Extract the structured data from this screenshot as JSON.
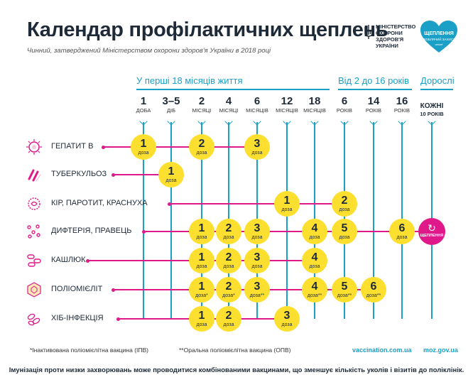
{
  "header": {
    "title": "Календар профілактичних щеплень",
    "subtitle": "Чинний, затверджений Міністерством охорони здоров'я України в 2018 році",
    "ministry_lines": [
      "МІНІСТЕРСТВО",
      "ОХОРОНИ",
      "ЗДОРОВ'Я",
      "УКРАЇНИ"
    ],
    "logo_title": "ЩЕПЛЕННЯ",
    "logo_subtitle": "ЛЮБЛЯЧИЙ ЗАХИСТ",
    "logo_brand": "unicef"
  },
  "groups": [
    {
      "label": "У перші 18 місяців життя"
    },
    {
      "label": "Від 2 до 16 років"
    },
    {
      "label": "Дорослі"
    }
  ],
  "columns": [
    {
      "num": "1",
      "unit": "ДОБА"
    },
    {
      "num": "3–5",
      "unit": "ДІБ"
    },
    {
      "num": "2",
      "unit": "МІСЯЦІ"
    },
    {
      "num": "4",
      "unit": "МІСЯЦІ"
    },
    {
      "num": "6",
      "unit": "МІСЯЦІВ"
    },
    {
      "num": "12",
      "unit": "МІСЯЦІВ"
    },
    {
      "num": "18",
      "unit": "МІСЯЦІВ"
    },
    {
      "num": "6",
      "unit": "РОКІВ"
    },
    {
      "num": "14",
      "unit": "РОКІВ"
    },
    {
      "num": "16",
      "unit": "РОКІВ"
    },
    {
      "num": "КОЖНІ",
      "unit": "10 РОКІВ"
    }
  ],
  "dose_word": "доза",
  "rows": [
    {
      "label": "ГЕПАТИТ В",
      "icon": "hepatitis-virus-icon",
      "doses": [
        {
          "col": 0,
          "n": "1",
          "note": ""
        },
        {
          "col": 2,
          "n": "2",
          "note": ""
        },
        {
          "col": 4,
          "n": "3",
          "note": ""
        }
      ]
    },
    {
      "label": "ТУБЕРКУЛЬОЗ",
      "icon": "tuberculosis-bacteria-icon",
      "doses": [
        {
          "col": 1,
          "n": "1",
          "note": ""
        }
      ]
    },
    {
      "label": "КІР, ПАРОТИТ, КРАСНУХА",
      "icon": "measles-virus-icon",
      "doses": [
        {
          "col": 5,
          "n": "1",
          "note": ""
        },
        {
          "col": 7,
          "n": "2",
          "note": ""
        }
      ]
    },
    {
      "label": "ДИФТЕРІЯ, ПРАВЕЦЬ",
      "icon": "diphtheria-bacteria-icon",
      "doses": [
        {
          "col": 2,
          "n": "1",
          "note": ""
        },
        {
          "col": 3,
          "n": "2",
          "note": ""
        },
        {
          "col": 4,
          "n": "3",
          "note": ""
        },
        {
          "col": 6,
          "n": "4",
          "note": ""
        },
        {
          "col": 7,
          "n": "5",
          "note": ""
        },
        {
          "col": 9,
          "n": "6",
          "note": ""
        }
      ]
    },
    {
      "label": "КАШЛЮК",
      "icon": "pertussis-bacteria-icon",
      "doses": [
        {
          "col": 2,
          "n": "1",
          "note": ""
        },
        {
          "col": 3,
          "n": "2",
          "note": ""
        },
        {
          "col": 4,
          "n": "3",
          "note": ""
        },
        {
          "col": 6,
          "n": "4",
          "note": ""
        }
      ]
    },
    {
      "label": "ПОЛІОМІЄЛІТ",
      "icon": "polio-virus-icon",
      "doses": [
        {
          "col": 2,
          "n": "1",
          "note": "*"
        },
        {
          "col": 3,
          "n": "2",
          "note": "*"
        },
        {
          "col": 4,
          "n": "3",
          "note": "**"
        },
        {
          "col": 6,
          "n": "4",
          "note": "**"
        },
        {
          "col": 7,
          "n": "5",
          "note": "**"
        },
        {
          "col": 8,
          "n": "6",
          "note": "**"
        }
      ]
    },
    {
      "label": "ХІБ-ІНФЕКЦІЯ",
      "icon": "hib-bacteria-icon",
      "doses": [
        {
          "col": 2,
          "n": "1",
          "note": ""
        },
        {
          "col": 3,
          "n": "2",
          "note": ""
        },
        {
          "col": 5,
          "n": "3",
          "note": ""
        }
      ]
    }
  ],
  "booster": {
    "label": "ЩЕПЛЕННЯ",
    "icon": "refresh-icon"
  },
  "footer": {
    "note_ipv": "*Інактивована поліомієлітна вакцина (ІПВ)",
    "note_opv": "**Оральна поліомієлітна вакцина (ОПВ)",
    "link1": "vaccination.com.ua",
    "link2": "moz.gov.ua",
    "bottom": "Імунізація проти низки захворювань може проводитися комбінованими вакцинами, що зменшує кількість уколів і візитів до поліклінік."
  },
  "colors": {
    "accent": "#1aa0c7",
    "magenta": "#e0198a",
    "dose": "#fde02f",
    "text": "#1e2a38"
  }
}
